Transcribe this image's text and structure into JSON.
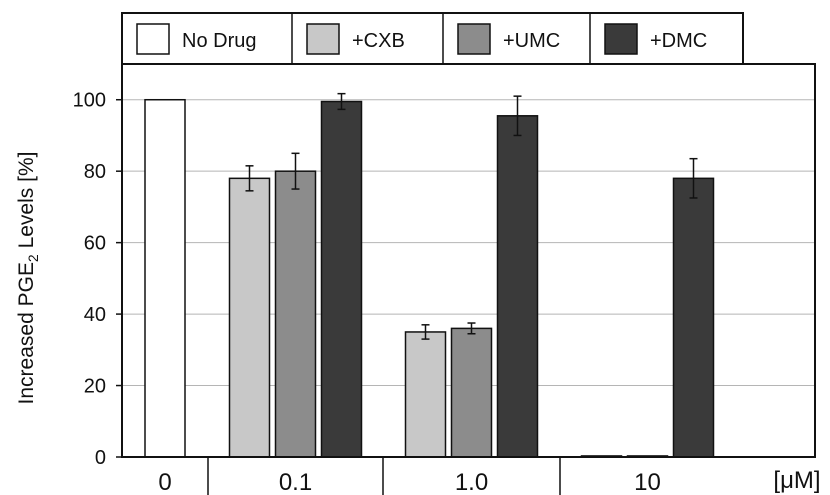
{
  "chart_data": {
    "type": "bar",
    "categories": [
      "0",
      "0.1",
      "1.0",
      "10"
    ],
    "x_unit_label": "[μM]",
    "ylabel": "Increased PGE2 Levels [%]",
    "ylabel_parts": {
      "before": "Increased PGE",
      "subscript": "2",
      "after": " Levels [%]"
    },
    "ylim": [
      0,
      110
    ],
    "yticks": [
      0,
      20,
      40,
      60,
      80,
      100
    ],
    "grid": true,
    "legend_position": "top",
    "series": [
      {
        "name": "No Drug",
        "color": "#ffffff",
        "values": [
          100,
          null,
          null,
          null
        ],
        "errors": [
          0,
          null,
          null,
          null
        ]
      },
      {
        "name": "+CXB",
        "color": "#c8c8c8",
        "values": [
          null,
          78,
          35,
          0.3
        ],
        "errors": [
          null,
          3.5,
          2,
          0
        ]
      },
      {
        "name": "+UMC",
        "color": "#8c8c8c",
        "values": [
          null,
          80,
          36,
          0.3
        ],
        "errors": [
          null,
          5,
          1.5,
          0
        ]
      },
      {
        "name": "+DMC",
        "color": "#3a3a3a",
        "values": [
          null,
          99.5,
          95.5,
          78
        ],
        "errors": [
          null,
          2.2,
          5.5,
          5.5
        ]
      }
    ]
  }
}
